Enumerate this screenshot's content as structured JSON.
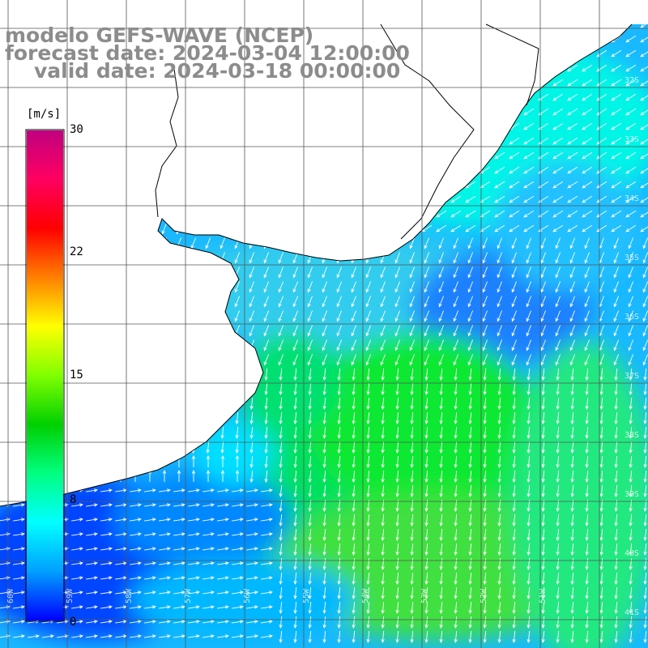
{
  "header": {
    "model": "modelo GEFS-WAVE (NCEP)",
    "forecast": "forecast date: 2024-03-04 12:00:00",
    "valid": "valid date: 2024-03-18 00:00:00"
  },
  "colorbar": {
    "unit": "[m/s]",
    "ticks": [
      "30",
      "22",
      "15",
      "8",
      "0"
    ],
    "tick_values": [
      30,
      22,
      15,
      8,
      0
    ],
    "min": 0,
    "max": 30,
    "colors": [
      "#0000ff",
      "#00a0ff",
      "#00ffff",
      "#00ff80",
      "#00d000",
      "#80ff00",
      "#ffff00",
      "#ff8000",
      "#ff0000",
      "#ff0060",
      "#c00080"
    ]
  },
  "map": {
    "lat_labels": [
      "32S",
      "33S",
      "34S",
      "35S",
      "36S",
      "37S",
      "38S",
      "39S",
      "40S",
      "41S"
    ],
    "lon_labels": [
      "60W",
      "59W",
      "58W",
      "57W",
      "56W",
      "55W",
      "54W",
      "53W",
      "52W",
      "51W"
    ],
    "land_color": "#ffffff",
    "grid_color": "#555555",
    "vector_color": "#ffffff"
  }
}
